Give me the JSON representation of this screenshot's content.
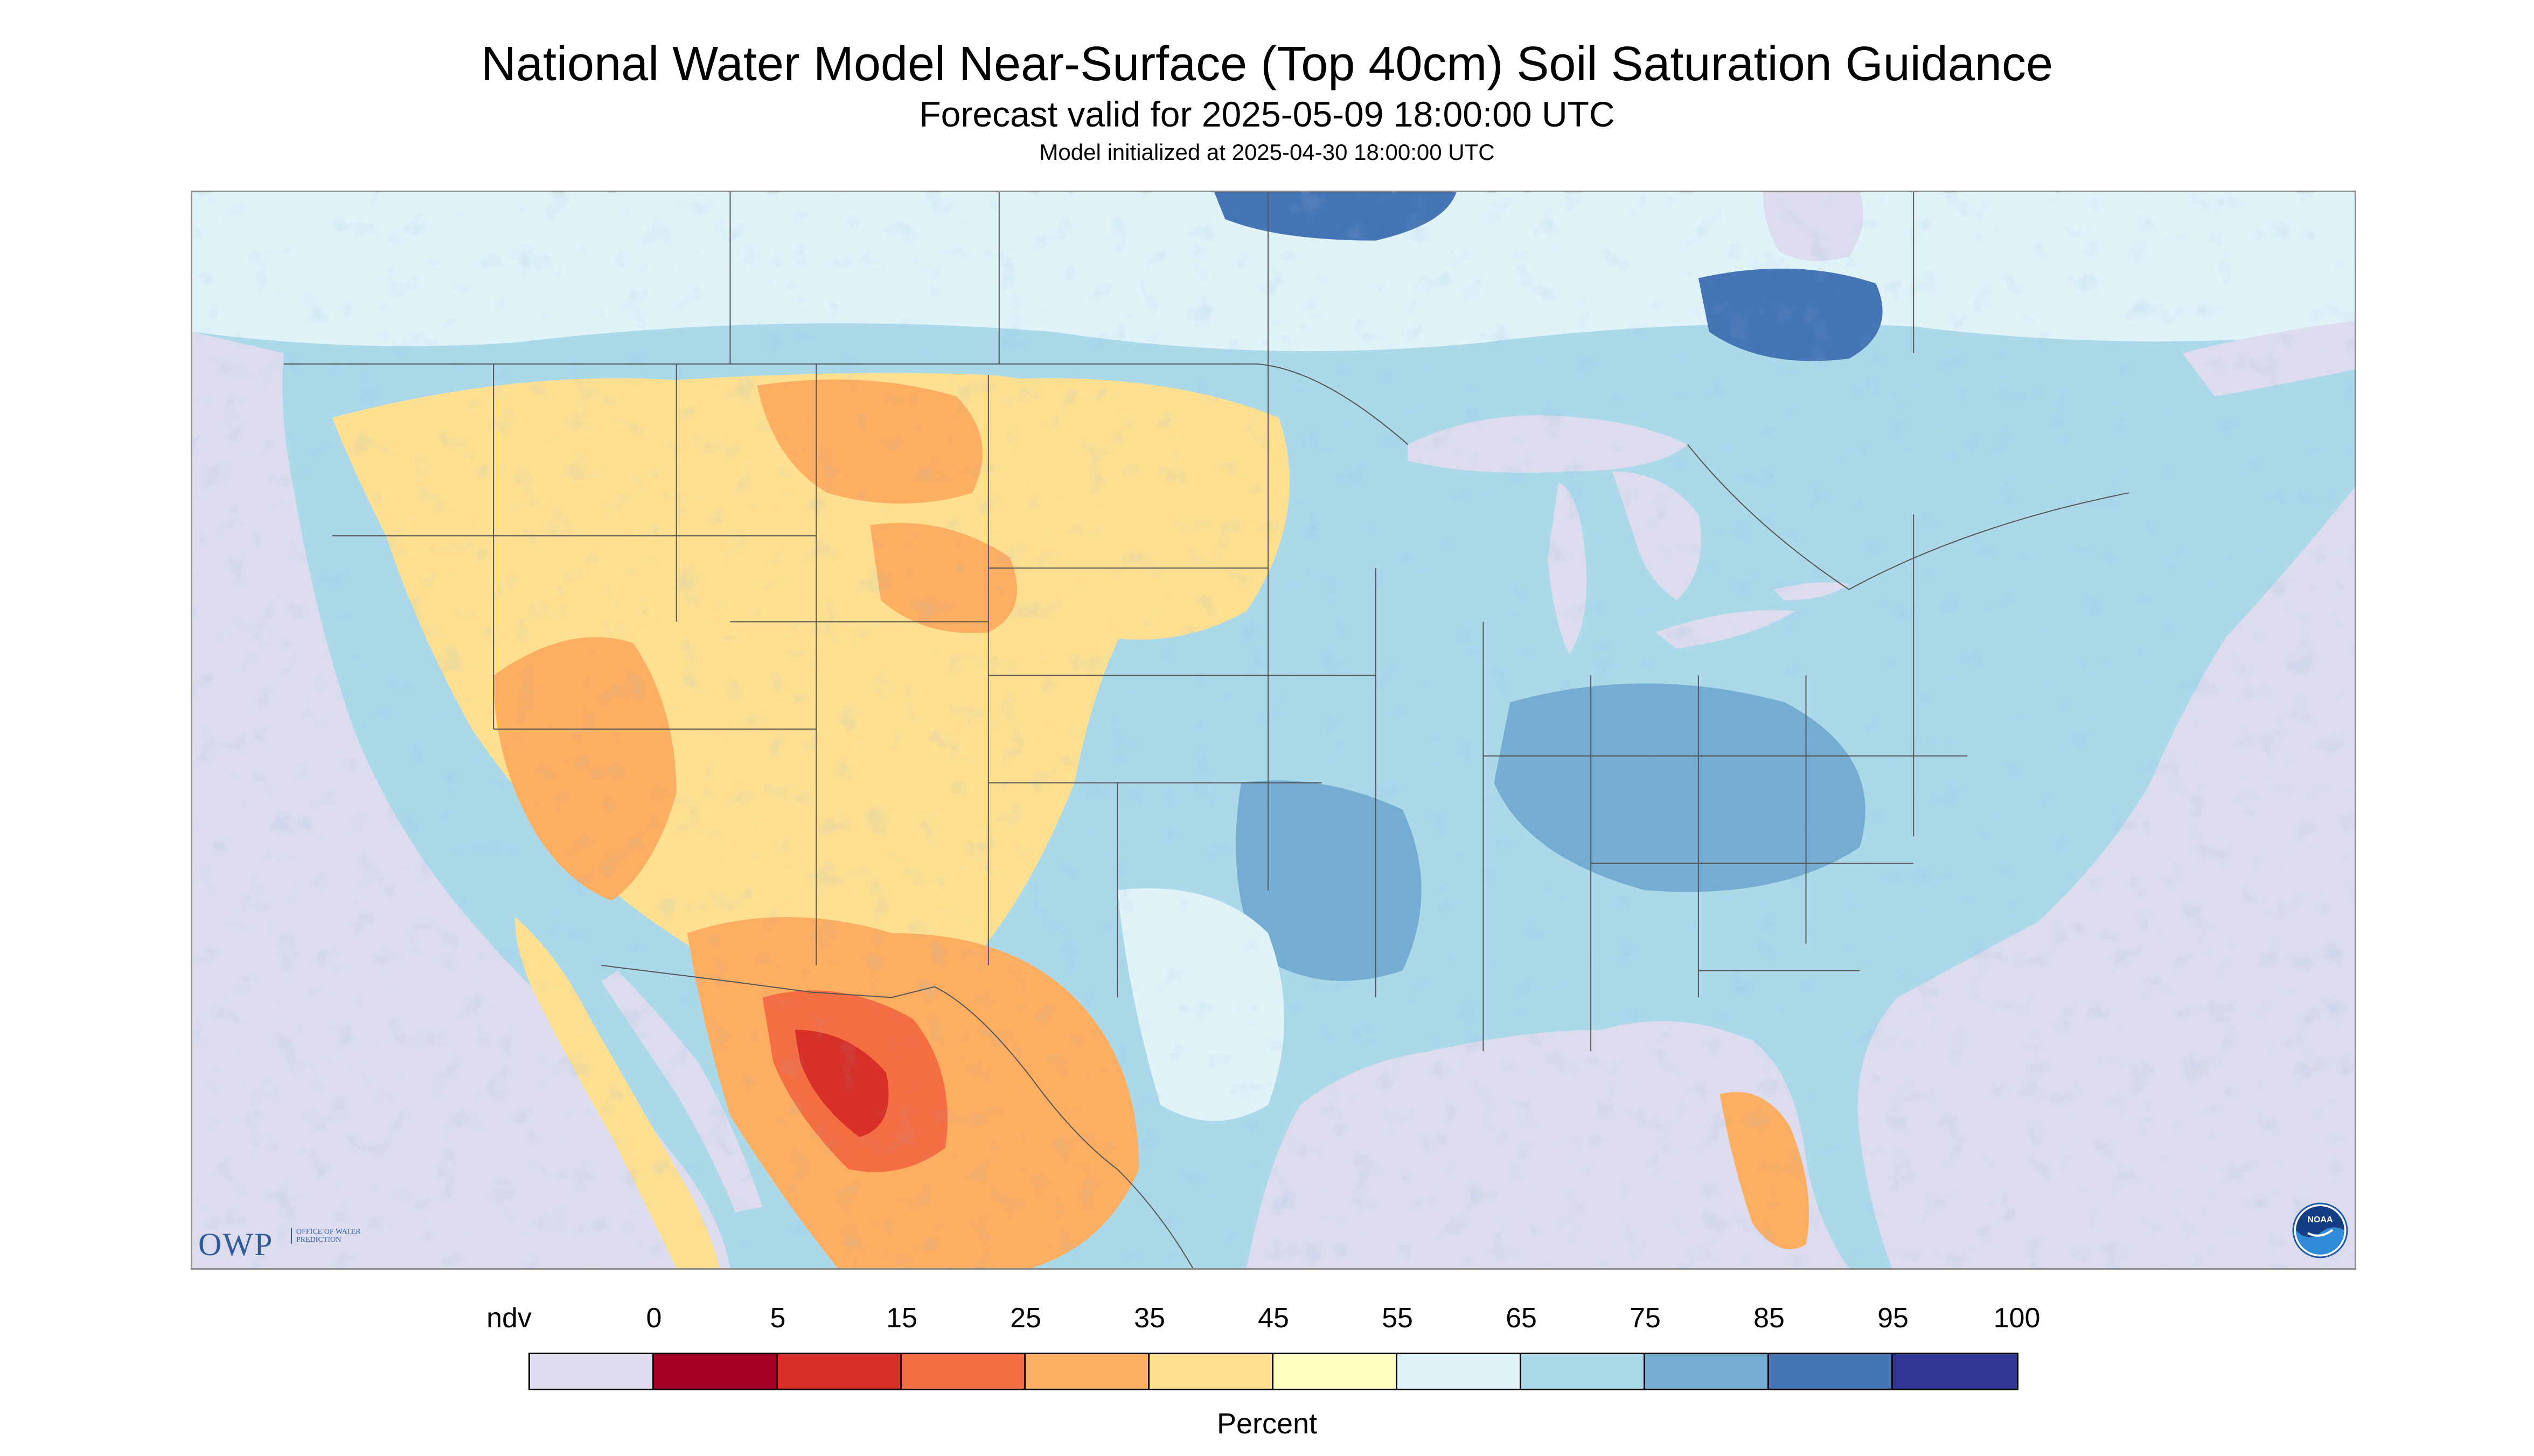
{
  "header": {
    "title": "National Water Model Near-Surface (Top 40cm) Soil Saturation Guidance",
    "subtitle": "Forecast valid for 2025-05-09 18:00:00 UTC",
    "init": "Model initialized at 2025-04-30 18:00:00 UTC"
  },
  "logos": {
    "owp_text": "OWP",
    "owp_sub": "Office of Water Prediction",
    "noaa_text": "NOAA"
  },
  "legend": {
    "title": "Percent",
    "labels": [
      "ndv",
      "0",
      "5",
      "15",
      "25",
      "35",
      "45",
      "55",
      "65",
      "75",
      "85",
      "95",
      "100"
    ],
    "colors": [
      "#dcdcee",
      "#a50026",
      "#d73027",
      "#f46d43",
      "#fdae61",
      "#fee090",
      "#ffffbf",
      "#e0f3f8",
      "#abd9e9",
      "#74add1",
      "#4575b4",
      "#313695"
    ]
  },
  "map": {
    "colors": {
      "nodata": "#dcdcee",
      "water": "#dcdcee",
      "wet_base": "#abd9e9",
      "moist": "#e0f3f8",
      "dry_yellow": "#fee090",
      "dry_orange": "#fdae61",
      "dry_red": "#f46d43",
      "very_dry": "#d73027",
      "wet": "#74add1",
      "very_wet": "#4575b4",
      "saturated": "#313695",
      "boundary": "#555555"
    }
  }
}
